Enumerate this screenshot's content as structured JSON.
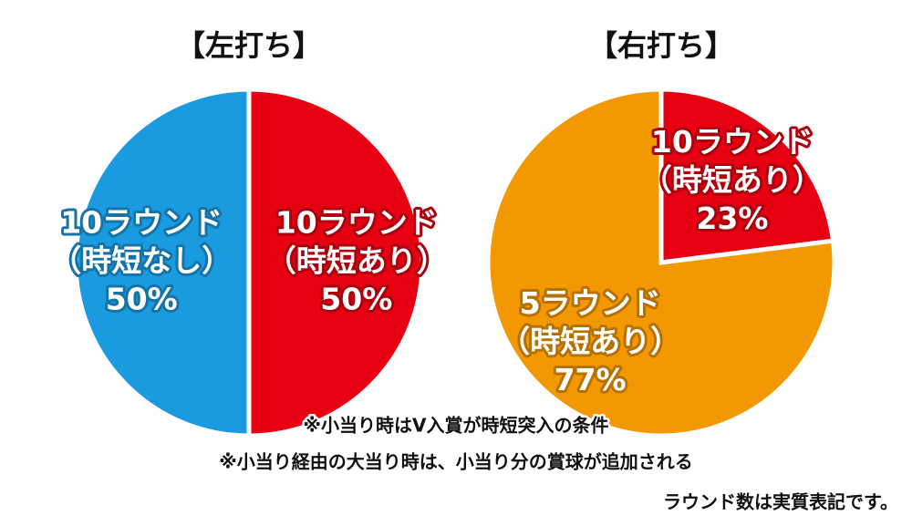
{
  "chart_data": [
    {
      "type": "pie",
      "title": "【左打ち】",
      "categories": [
        "10ラウンド",
        "10ラウンド"
      ],
      "conditions": [
        "（時短あり）",
        "（時短なし）"
      ],
      "values": [
        50,
        50
      ],
      "value_labels": [
        "50%",
        "50%"
      ],
      "colors": [
        "#e60012",
        "#1a9be0"
      ]
    },
    {
      "type": "pie",
      "title": "【右打ち】",
      "categories": [
        "10ラウンド",
        "5ラウンド"
      ],
      "conditions": [
        "（時短あり）",
        "（時短あり）"
      ],
      "values": [
        23,
        77
      ],
      "value_labels": [
        "23%",
        "77%"
      ],
      "colors": [
        "#e60012",
        "#f39800"
      ]
    }
  ],
  "notes": [
    "※小当り時はV入賞が時短突入の条件",
    "※小当り経由の大当り時は、小当り分の賞球が追加される",
    "ラウンド数は実質表記です。"
  ]
}
